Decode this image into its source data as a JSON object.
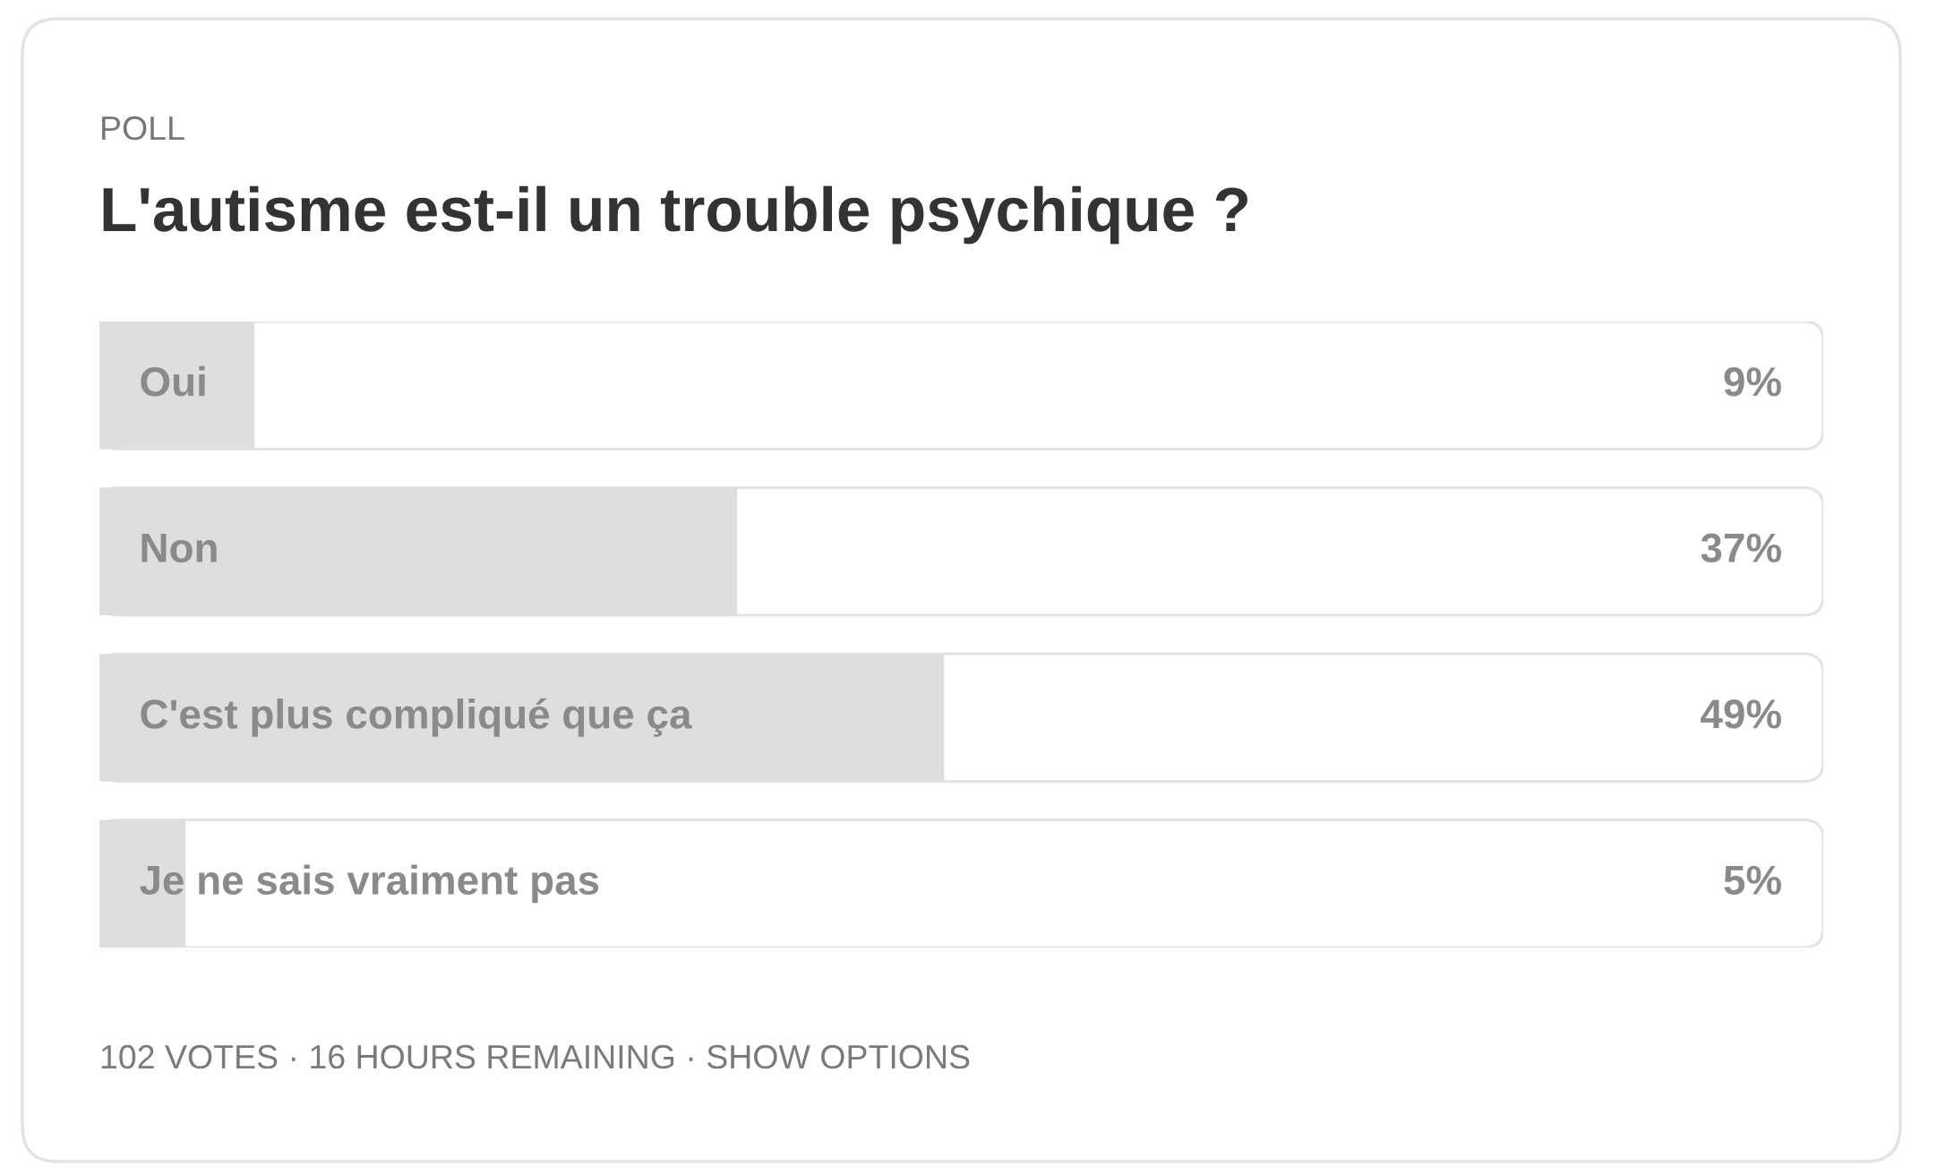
{
  "chart_data": {
    "type": "bar",
    "orientation": "horizontal",
    "subtitle": "POLL",
    "title": "L'autisme est-il un trouble psychique ?",
    "categories": [
      "Oui",
      "Non",
      "C'est plus compliqué que ça",
      "Je ne sais vraiment pas"
    ],
    "values": [
      9,
      37,
      49,
      5
    ],
    "color": "#dedede",
    "value_labels": [
      "9%",
      "37%",
      "49%",
      "5%"
    ],
    "xlim": [
      0,
      100
    ],
    "tick_labels": false,
    "annotations": [
      "102 VOTES · 16 HOURS REMAINING · SHOW OPTIONS"
    ]
  }
}
